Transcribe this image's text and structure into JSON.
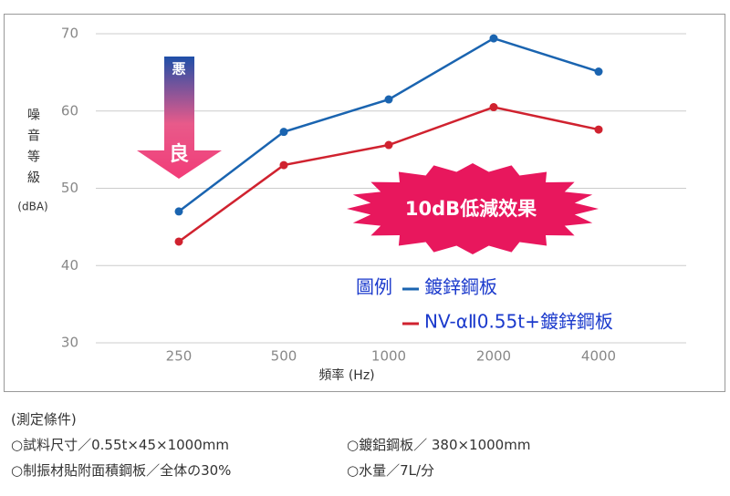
{
  "chart_data": {
    "type": "line",
    "categories": [
      "250",
      "500",
      "1000",
      "2000",
      "4000"
    ],
    "series": [
      {
        "name": "鍍鋅鋼板",
        "color": "#1a64b0",
        "values": [
          47,
          57.3,
          61.5,
          69.4,
          65.1
        ]
      },
      {
        "name": "NV-αⅡ0.55t+鍍鋅鋼板",
        "color": "#d0222f",
        "values": [
          43.1,
          53,
          55.6,
          60.5,
          57.6
        ]
      }
    ],
    "ylim": [
      30,
      70
    ],
    "yticks": [
      30,
      40,
      50,
      60,
      70
    ],
    "grid": true,
    "y_label": "噪音等級",
    "y_label_unit": "(dBA)",
    "x_label": "頻率 (Hz)",
    "legend_title": "圖例",
    "annotation": "10dB低減效果",
    "arrow_top_label": "悪",
    "arrow_bottom_label": "良"
  },
  "conditions": {
    "title": "(測定條件)",
    "items": [
      "○試料尺寸／0.55t×45×1000mm",
      "○鍍鋁鋼板／ 380×1000mm",
      "○制振材貼附面積鋼板／全体の30%",
      "○水量／7L/分"
    ]
  }
}
